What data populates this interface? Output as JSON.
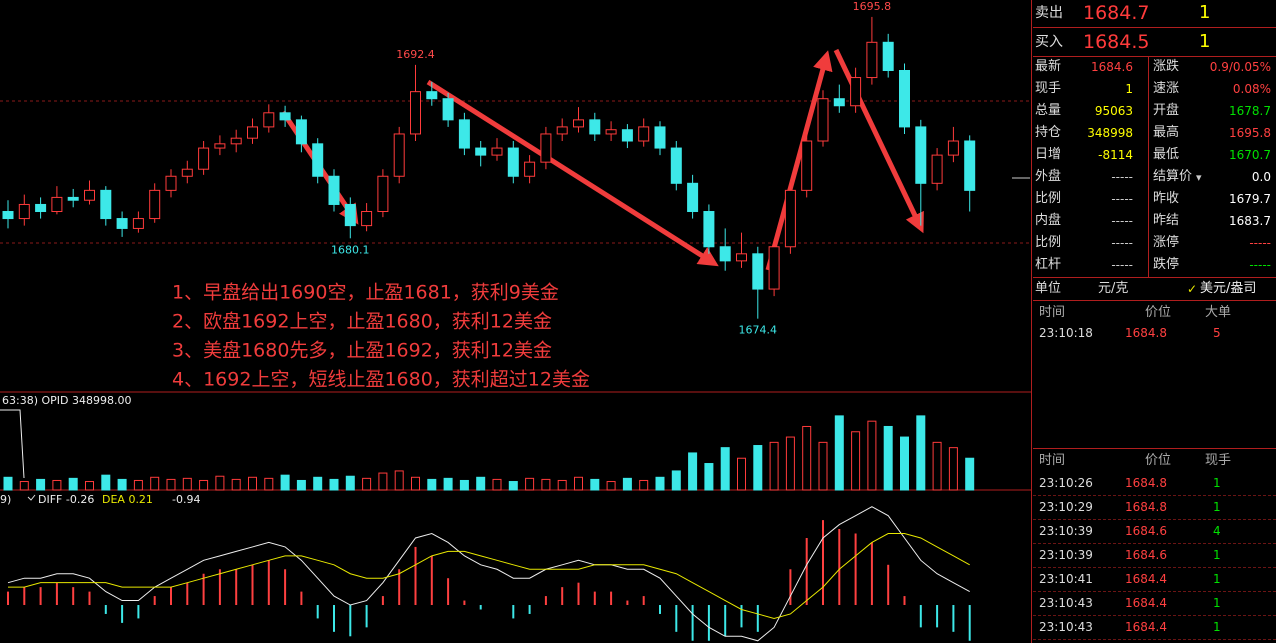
{
  "chart_data": {
    "type": "candlestick",
    "ylim": [
      1669.2,
      1697
    ],
    "up_color": "#ff3b3b",
    "down_color": "#3de8e8",
    "candles": [
      [
        1682,
        1682.8,
        1680.8,
        1681.5
      ],
      [
        1681.5,
        1683.2,
        1681,
        1682.5
      ],
      [
        1682.5,
        1683,
        1681.5,
        1682
      ],
      [
        1682,
        1683.8,
        1681.8,
        1683
      ],
      [
        1683,
        1683.6,
        1682.3,
        1682.8
      ],
      [
        1682.8,
        1684.2,
        1682.5,
        1683.5
      ],
      [
        1683.5,
        1683.8,
        1681,
        1681.5
      ],
      [
        1681.5,
        1682,
        1680.2,
        1680.8
      ],
      [
        1680.8,
        1682,
        1680.5,
        1681.5
      ],
      [
        1681.5,
        1684,
        1681.2,
        1683.5
      ],
      [
        1683.5,
        1685,
        1683,
        1684.5
      ],
      [
        1684.5,
        1685.6,
        1684,
        1685
      ],
      [
        1685,
        1687,
        1684.6,
        1686.5
      ],
      [
        1686.5,
        1687.4,
        1686,
        1686.8
      ],
      [
        1686.8,
        1687.8,
        1686.2,
        1687.2
      ],
      [
        1687.2,
        1688.6,
        1686.8,
        1688
      ],
      [
        1688,
        1689.6,
        1687.6,
        1689
      ],
      [
        1689,
        1689.5,
        1688,
        1688.5
      ],
      [
        1688.5,
        1688.8,
        1686.2,
        1686.8
      ],
      [
        1686.8,
        1687.2,
        1684,
        1684.5
      ],
      [
        1684.5,
        1685,
        1682,
        1682.5
      ],
      [
        1682.5,
        1683,
        1680.1,
        1681
      ],
      [
        1681,
        1682.6,
        1680.6,
        1682
      ],
      [
        1682,
        1685,
        1681.6,
        1684.5
      ],
      [
        1684.5,
        1688,
        1684,
        1687.5
      ],
      [
        1687.5,
        1692.4,
        1687,
        1690.5
      ],
      [
        1690.5,
        1691.2,
        1689.5,
        1690
      ],
      [
        1690,
        1690.4,
        1688,
        1688.5
      ],
      [
        1688.5,
        1689,
        1686,
        1686.5
      ],
      [
        1686.5,
        1687,
        1685.2,
        1686
      ],
      [
        1686,
        1687.2,
        1685.6,
        1686.5
      ],
      [
        1686.5,
        1687,
        1684,
        1684.5
      ],
      [
        1684.5,
        1686,
        1684,
        1685.5
      ],
      [
        1685.5,
        1688,
        1685,
        1687.5
      ],
      [
        1687.5,
        1688.6,
        1687,
        1688
      ],
      [
        1688,
        1689.4,
        1687.6,
        1688.5
      ],
      [
        1688.5,
        1689,
        1687,
        1687.5
      ],
      [
        1687.5,
        1688.4,
        1687,
        1687.8
      ],
      [
        1687.8,
        1688.2,
        1686.5,
        1687
      ],
      [
        1687,
        1688.6,
        1686.6,
        1688
      ],
      [
        1688,
        1688.4,
        1686,
        1686.5
      ],
      [
        1686.5,
        1687,
        1683.5,
        1684
      ],
      [
        1684,
        1684.6,
        1681.5,
        1682
      ],
      [
        1682,
        1682.5,
        1679,
        1679.5
      ],
      [
        1679.5,
        1680.8,
        1677.8,
        1678.5
      ],
      [
        1678.5,
        1680.5,
        1678,
        1679
      ],
      [
        1679,
        1679.5,
        1674.4,
        1676.5
      ],
      [
        1676.5,
        1680,
        1676,
        1679.5
      ],
      [
        1679.5,
        1684,
        1679,
        1683.5
      ],
      [
        1683.5,
        1687.6,
        1683,
        1687
      ],
      [
        1687,
        1690.6,
        1686.6,
        1690
      ],
      [
        1690,
        1691,
        1689,
        1689.5
      ],
      [
        1689.5,
        1692.2,
        1689,
        1691.5
      ],
      [
        1691.5,
        1695.8,
        1691,
        1694
      ],
      [
        1694,
        1694.6,
        1691.5,
        1692
      ],
      [
        1692,
        1692.5,
        1687.5,
        1688
      ],
      [
        1688,
        1688.5,
        1681,
        1684
      ],
      [
        1684,
        1686.5,
        1683.5,
        1686
      ],
      [
        1686,
        1688,
        1685.5,
        1687
      ],
      [
        1687,
        1687.4,
        1682,
        1683.5
      ]
    ],
    "high_labels": [
      1695.8,
      1692.4
    ],
    "low_labels": [
      1680.1,
      1674.4
    ],
    "notes": [
      "1、早盘给出1690空，止盈1681，获利9美金",
      "2、欧盘1692上空，止盈1680，获利12美金",
      "3、美盘1680先多，止盈1692，获利12美金",
      "4、1692上空，短线止盈1680，获利超过12美金"
    ],
    "volume": {
      "header": "63:38) OPID 348998.00",
      "ylim": [
        0,
        85
      ],
      "values": [
        12,
        8,
        10,
        9,
        11,
        8,
        14,
        10,
        9,
        12,
        10,
        11,
        9,
        13,
        10,
        12,
        11,
        14,
        9,
        12,
        10,
        13,
        11,
        16,
        18,
        12,
        10,
        11,
        9,
        12,
        10,
        8,
        11,
        10,
        9,
        12,
        10,
        8,
        11,
        9,
        12,
        18,
        35,
        25,
        40,
        30,
        42,
        45,
        50,
        60,
        45,
        70,
        55,
        65,
        60,
        50,
        70,
        45,
        40,
        30
      ]
    },
    "macd": {
      "header": [
        "9)",
        "DIFF -0.26",
        "DEA 0.21",
        "-0.94"
      ],
      "ylim": [
        -0.85,
        2.35
      ],
      "hist": [
        0.3,
        0.4,
        0.4,
        0.5,
        0.4,
        0.3,
        -0.2,
        -0.4,
        -0.3,
        0.2,
        0.4,
        0.5,
        0.7,
        0.8,
        0.8,
        0.9,
        1.0,
        0.8,
        0.3,
        -0.3,
        -0.6,
        -0.7,
        -0.5,
        0.2,
        0.8,
        1.3,
        1.1,
        0.6,
        0.1,
        -0.1,
        0,
        -0.3,
        -0.2,
        0.2,
        0.4,
        0.5,
        0.3,
        0.3,
        0.1,
        0.2,
        -0.2,
        -0.6,
        -0.8,
        -0.8,
        -0.7,
        -0.5,
        -0.6,
        0,
        0.8,
        1.5,
        1.9,
        1.7,
        1.6,
        1.4,
        0.9,
        0.2,
        -0.5,
        -0.5,
        -0.6,
        -0.8
      ],
      "diff": [
        0.5,
        0.6,
        0.6,
        0.7,
        0.7,
        0.6,
        0.3,
        0.1,
        0.1,
        0.4,
        0.6,
        0.8,
        1.0,
        1.1,
        1.2,
        1.3,
        1.4,
        1.3,
        1.0,
        0.6,
        0.2,
        0,
        0.1,
        0.5,
        1.0,
        1.5,
        1.6,
        1.4,
        1.1,
        0.9,
        0.8,
        0.6,
        0.6,
        0.8,
        0.9,
        1.0,
        0.9,
        0.9,
        0.8,
        0.8,
        0.6,
        0.2,
        -0.2,
        -0.5,
        -0.7,
        -0.7,
        -0.8,
        -0.5,
        0.2,
        0.9,
        1.5,
        1.8,
        2.0,
        2.2,
        2.0,
        1.5,
        1.0,
        0.7,
        0.5,
        0.3
      ],
      "dea": [
        0.4,
        0.4,
        0.5,
        0.5,
        0.5,
        0.5,
        0.5,
        0.4,
        0.4,
        0.4,
        0.4,
        0.5,
        0.6,
        0.7,
        0.8,
        0.9,
        1.0,
        1.1,
        1.1,
        1.0,
        0.9,
        0.7,
        0.6,
        0.6,
        0.7,
        0.9,
        1.1,
        1.2,
        1.2,
        1.1,
        1.0,
        0.9,
        0.8,
        0.8,
        0.8,
        0.8,
        0.9,
        0.9,
        0.9,
        0.9,
        0.8,
        0.7,
        0.5,
        0.3,
        0.1,
        -0.1,
        -0.2,
        -0.3,
        -0.2,
        0.1,
        0.4,
        0.8,
        1.1,
        1.4,
        1.6,
        1.6,
        1.5,
        1.3,
        1.1,
        0.9
      ]
    }
  },
  "panel": {
    "quotes": [
      [
        "卖出",
        "1684.7",
        "1"
      ],
      [
        "买入",
        "1684.5",
        "1"
      ]
    ],
    "stats": [
      [
        "最新",
        "1684.6",
        "涨跌",
        "0.9/0.05%"
      ],
      [
        "现手",
        "1",
        "速涨",
        "0.08%"
      ],
      [
        "总量",
        "95063",
        "开盘",
        "1678.7"
      ],
      [
        "持仓",
        "348998",
        "最高",
        "1695.8"
      ],
      [
        "日增",
        "-8114",
        "最低",
        "1670.7"
      ],
      [
        "外盘",
        "-----",
        "结算价",
        "0.0"
      ],
      [
        "比例",
        "-----",
        "昨收",
        "1679.7"
      ],
      [
        "内盘",
        "-----",
        "昨结",
        "1683.7"
      ],
      [
        "比例",
        "-----",
        "涨停",
        "-----"
      ],
      [
        "杠杆",
        "-----",
        "跌停",
        "-----"
      ]
    ],
    "stat_colors": [
      [
        "#ff4040",
        "#ff4040"
      ],
      [
        "#ffff00",
        "#ff4040"
      ],
      [
        "#ffff00",
        "#00e000"
      ],
      [
        "#ffff00",
        "#ff4040"
      ],
      [
        "#ffff00",
        "#00e000"
      ],
      [
        "#cccccc",
        "#ffffff"
      ],
      [
        "#cccccc",
        "#ffffff"
      ],
      [
        "#cccccc",
        "#ffffff"
      ],
      [
        "#cccccc",
        "#ff4040"
      ],
      [
        "#cccccc",
        "#00e000"
      ]
    ],
    "unit": [
      "单位",
      "元/克",
      "美元/盎司"
    ],
    "big_header": [
      "时间",
      "价位",
      "大单"
    ],
    "big_rows": [
      [
        "23:10:18",
        "1684.8",
        "5"
      ]
    ],
    "tick_header": [
      "时间",
      "价位",
      "现手"
    ],
    "tick_rows": [
      [
        "23:10:26",
        "1684.8",
        "1"
      ],
      [
        "23:10:29",
        "1684.8",
        "1"
      ],
      [
        "23:10:39",
        "1684.6",
        "4"
      ],
      [
        "23:10:39",
        "1684.6",
        "1"
      ],
      [
        "23:10:41",
        "1684.4",
        "1"
      ],
      [
        "23:10:43",
        "1684.4",
        "1"
      ],
      [
        "23:10:43",
        "1684.4",
        "1"
      ]
    ]
  }
}
